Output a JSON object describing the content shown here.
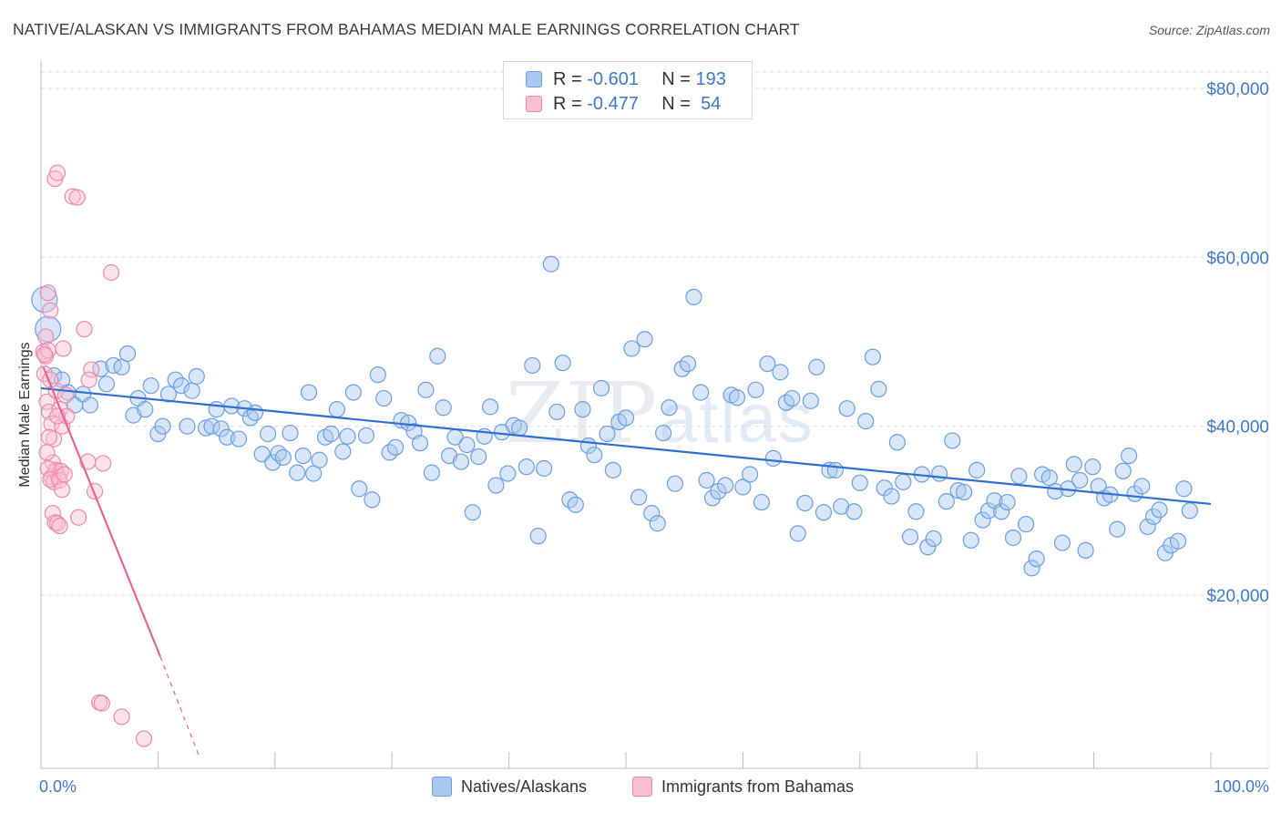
{
  "title": "NATIVE/ALASKAN VS IMMIGRANTS FROM BAHAMAS MEDIAN MALE EARNINGS CORRELATION CHART",
  "source": "Source: ZipAtlas.com",
  "watermark": {
    "zip": "ZIP",
    "atlas": "atlas"
  },
  "legend": {
    "rows": [
      {
        "r_label": "R =",
        "r_value": "-0.601",
        "n_label": "N =",
        "n_value": "193",
        "color": "#a8c8f0",
        "border": "#6a9fe0"
      },
      {
        "r_label": "R =",
        "r_value": "-0.477",
        "n_label": "N =",
        "n_value": "54",
        "color": "#f8c0d2",
        "border": "#ec8aaa"
      }
    ]
  },
  "bottom_legend": {
    "natives": "Natives/Alaskans",
    "bahamas": "Immigrants from Bahamas"
  },
  "chart_data": {
    "type": "scatter",
    "title": "NATIVE/ALASKAN VS IMMIGRANTS FROM BAHAMAS MEDIAN MALE EARNINGS CORRELATION CHART",
    "xlabel": "",
    "ylabel": "Median Male Earnings",
    "xlim": [
      0,
      100
    ],
    "ylim": [
      0,
      82000
    ],
    "x_tick_labels": [
      "0.0%",
      "100.0%"
    ],
    "y_ticks": [
      20000,
      40000,
      60000,
      80000
    ],
    "y_tick_labels": [
      "$20,000",
      "$40,000",
      "$60,000",
      "$80,000"
    ],
    "grid": true,
    "legend_position": "top-center",
    "series": [
      {
        "name": "Natives/Alaskans",
        "color": "#6a9fe0",
        "fill": "#a8c8f0",
        "trend": {
          "x": [
            0,
            100
          ],
          "y": [
            44500,
            30800
          ]
        },
        "points": [
          [
            0.3,
            55000
          ],
          [
            0.6,
            51500
          ],
          [
            1.1,
            46000
          ],
          [
            1.8,
            45500
          ],
          [
            2.3,
            44000
          ],
          [
            2.9,
            42500
          ],
          [
            3.6,
            43800
          ],
          [
            4.2,
            42500
          ],
          [
            5.1,
            46800
          ],
          [
            5.6,
            45000
          ],
          [
            6.2,
            47200
          ],
          [
            6.9,
            47000
          ],
          [
            7.4,
            48600
          ],
          [
            7.9,
            41300
          ],
          [
            8.3,
            43300
          ],
          [
            8.9,
            42000
          ],
          [
            9.4,
            44800
          ],
          [
            10.0,
            39100
          ],
          [
            10.4,
            40000
          ],
          [
            10.9,
            43800
          ],
          [
            11.5,
            45500
          ],
          [
            12.0,
            44800
          ],
          [
            12.5,
            40000
          ],
          [
            12.9,
            44200
          ],
          [
            13.3,
            45900
          ],
          [
            14.1,
            39800
          ],
          [
            14.6,
            40000
          ],
          [
            15.0,
            42000
          ],
          [
            15.4,
            39700
          ],
          [
            15.9,
            38700
          ],
          [
            16.3,
            42400
          ],
          [
            16.9,
            38500
          ],
          [
            17.4,
            42100
          ],
          [
            17.9,
            41000
          ],
          [
            18.3,
            41600
          ],
          [
            18.9,
            36700
          ],
          [
            19.4,
            39100
          ],
          [
            19.8,
            35700
          ],
          [
            20.3,
            36800
          ],
          [
            20.7,
            36300
          ],
          [
            21.3,
            39200
          ],
          [
            21.9,
            34500
          ],
          [
            22.4,
            36500
          ],
          [
            22.9,
            44000
          ],
          [
            23.3,
            34400
          ],
          [
            23.8,
            36000
          ],
          [
            24.3,
            38700
          ],
          [
            24.8,
            39100
          ],
          [
            25.3,
            42000
          ],
          [
            25.8,
            37000
          ],
          [
            26.2,
            38800
          ],
          [
            26.7,
            44000
          ],
          [
            27.2,
            32600
          ],
          [
            27.8,
            38900
          ],
          [
            28.3,
            31300
          ],
          [
            28.8,
            46100
          ],
          [
            29.3,
            43300
          ],
          [
            29.8,
            36900
          ],
          [
            30.3,
            37500
          ],
          [
            30.8,
            40700
          ],
          [
            31.4,
            40400
          ],
          [
            31.9,
            39400
          ],
          [
            32.4,
            38000
          ],
          [
            32.9,
            44300
          ],
          [
            33.4,
            34500
          ],
          [
            33.9,
            48300
          ],
          [
            34.4,
            42200
          ],
          [
            34.9,
            36500
          ],
          [
            35.4,
            38700
          ],
          [
            35.9,
            35800
          ],
          [
            36.4,
            37800
          ],
          [
            36.9,
            29800
          ],
          [
            37.4,
            36400
          ],
          [
            37.9,
            38800
          ],
          [
            38.4,
            42300
          ],
          [
            38.9,
            33000
          ],
          [
            39.4,
            39300
          ],
          [
            39.9,
            34400
          ],
          [
            40.4,
            40100
          ],
          [
            40.9,
            39800
          ],
          [
            41.5,
            35200
          ],
          [
            42.0,
            47200
          ],
          [
            42.5,
            27000
          ],
          [
            43.0,
            35000
          ],
          [
            43.6,
            59200
          ],
          [
            44.1,
            41700
          ],
          [
            44.6,
            47500
          ],
          [
            45.2,
            31300
          ],
          [
            45.7,
            30700
          ],
          [
            46.3,
            42000
          ],
          [
            46.8,
            37700
          ],
          [
            47.3,
            36600
          ],
          [
            47.9,
            44500
          ],
          [
            48.4,
            39100
          ],
          [
            48.9,
            34800
          ],
          [
            49.4,
            40500
          ],
          [
            50.0,
            41000
          ],
          [
            50.5,
            49200
          ],
          [
            51.1,
            31600
          ],
          [
            51.6,
            50300
          ],
          [
            52.2,
            29700
          ],
          [
            52.7,
            28500
          ],
          [
            53.2,
            39200
          ],
          [
            53.7,
            42200
          ],
          [
            54.2,
            33200
          ],
          [
            54.8,
            46800
          ],
          [
            55.3,
            47400
          ],
          [
            55.8,
            55300
          ],
          [
            56.4,
            44000
          ],
          [
            56.9,
            33600
          ],
          [
            57.4,
            31500
          ],
          [
            57.9,
            32300
          ],
          [
            58.5,
            33000
          ],
          [
            59.0,
            43700
          ],
          [
            59.5,
            43400
          ],
          [
            60.0,
            32800
          ],
          [
            60.6,
            34300
          ],
          [
            61.1,
            44300
          ],
          [
            61.6,
            31000
          ],
          [
            62.1,
            47400
          ],
          [
            62.6,
            36200
          ],
          [
            63.2,
            46400
          ],
          [
            63.7,
            42800
          ],
          [
            64.2,
            43300
          ],
          [
            64.7,
            27300
          ],
          [
            65.3,
            30900
          ],
          [
            65.8,
            43000
          ],
          [
            66.3,
            47000
          ],
          [
            66.9,
            29800
          ],
          [
            67.4,
            34800
          ],
          [
            67.9,
            34800
          ],
          [
            68.4,
            30500
          ],
          [
            68.9,
            42100
          ],
          [
            69.5,
            29900
          ],
          [
            70.0,
            33300
          ],
          [
            70.5,
            40600
          ],
          [
            71.1,
            48200
          ],
          [
            71.6,
            44400
          ],
          [
            72.1,
            32700
          ],
          [
            72.7,
            31700
          ],
          [
            73.2,
            38100
          ],
          [
            73.7,
            33400
          ],
          [
            74.3,
            26900
          ],
          [
            74.8,
            29900
          ],
          [
            75.3,
            34300
          ],
          [
            75.8,
            25700
          ],
          [
            76.3,
            26700
          ],
          [
            76.8,
            34400
          ],
          [
            77.4,
            31100
          ],
          [
            77.9,
            38300
          ],
          [
            78.4,
            32400
          ],
          [
            78.9,
            32200
          ],
          [
            79.5,
            26500
          ],
          [
            80.0,
            34800
          ],
          [
            80.5,
            28900
          ],
          [
            81.0,
            30000
          ],
          [
            81.5,
            31200
          ],
          [
            82.1,
            29900
          ],
          [
            82.6,
            31000
          ],
          [
            83.1,
            26800
          ],
          [
            83.6,
            34100
          ],
          [
            84.2,
            28400
          ],
          [
            84.7,
            23200
          ],
          [
            85.1,
            24300
          ],
          [
            85.6,
            34300
          ],
          [
            86.2,
            33900
          ],
          [
            86.7,
            32300
          ],
          [
            87.3,
            26200
          ],
          [
            87.8,
            32600
          ],
          [
            88.3,
            35500
          ],
          [
            88.8,
            33600
          ],
          [
            89.3,
            25300
          ],
          [
            89.9,
            35200
          ],
          [
            90.4,
            32900
          ],
          [
            90.9,
            31500
          ],
          [
            91.4,
            31900
          ],
          [
            92.0,
            27800
          ],
          [
            92.5,
            34700
          ],
          [
            93.0,
            36500
          ],
          [
            93.5,
            32000
          ],
          [
            94.1,
            32900
          ],
          [
            94.6,
            28100
          ],
          [
            95.1,
            29300
          ],
          [
            95.6,
            30100
          ],
          [
            96.1,
            25000
          ],
          [
            96.6,
            25900
          ],
          [
            97.2,
            26400
          ],
          [
            97.7,
            32600
          ],
          [
            98.2,
            30000
          ]
        ]
      },
      {
        "name": "Immigrants from Bahamas",
        "color": "#ec8aaa",
        "fill": "#f8c0d2",
        "trend": {
          "x": [
            0.2,
            10.2
          ],
          "y": [
            47000,
            12700
          ]
        },
        "trend_dashed": {
          "x": [
            10.2,
            13.5
          ],
          "y": [
            12700,
            1000
          ]
        },
        "points": [
          [
            0.2,
            48800
          ],
          [
            0.4,
            50600
          ],
          [
            0.6,
            55800
          ],
          [
            0.8,
            53700
          ],
          [
            0.3,
            46200
          ],
          [
            0.5,
            42900
          ],
          [
            0.7,
            41700
          ],
          [
            0.9,
            40300
          ],
          [
            1.1,
            38500
          ],
          [
            1.3,
            44200
          ],
          [
            0.4,
            48300
          ],
          [
            0.6,
            49000
          ],
          [
            0.8,
            45500
          ],
          [
            1.0,
            35700
          ],
          [
            1.2,
            34600
          ],
          [
            0.9,
            34000
          ],
          [
            1.1,
            33400
          ],
          [
            1.3,
            34800
          ],
          [
            1.5,
            34000
          ],
          [
            1.7,
            34700
          ],
          [
            0.6,
            35000
          ],
          [
            0.8,
            33700
          ],
          [
            1.0,
            29700
          ],
          [
            1.2,
            28600
          ],
          [
            1.4,
            28500
          ],
          [
            1.6,
            28200
          ],
          [
            0.5,
            36900
          ],
          [
            0.7,
            38700
          ],
          [
            1.6,
            42000
          ],
          [
            1.8,
            40000
          ],
          [
            2.2,
            41200
          ],
          [
            1.4,
            41200
          ],
          [
            1.6,
            33600
          ],
          [
            1.8,
            32500
          ],
          [
            2.0,
            34300
          ],
          [
            1.2,
            69300
          ],
          [
            1.4,
            70000
          ],
          [
            2.7,
            67200
          ],
          [
            3.1,
            67100
          ],
          [
            6.0,
            58200
          ],
          [
            3.7,
            51500
          ],
          [
            4.3,
            46700
          ],
          [
            4.1,
            45500
          ],
          [
            4.0,
            35800
          ],
          [
            5.3,
            35600
          ],
          [
            4.6,
            32300
          ],
          [
            3.2,
            29200
          ],
          [
            5.0,
            7300
          ],
          [
            5.2,
            7200
          ],
          [
            6.9,
            5600
          ],
          [
            8.8,
            3000
          ],
          [
            1.9,
            49200
          ],
          [
            0.3,
            48500
          ],
          [
            2.1,
            43700
          ]
        ]
      }
    ]
  }
}
